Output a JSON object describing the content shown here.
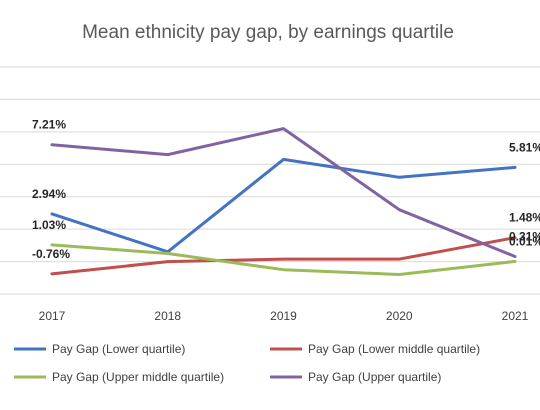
{
  "chart_data": {
    "type": "line",
    "title": "Mean ethnicity pay gap, by earnings quartile",
    "xlabel": "",
    "ylabel": "",
    "x": [
      "2017",
      "2018",
      "2019",
      "2020",
      "2021"
    ],
    "ylim": [
      -2,
      12
    ],
    "grid": true,
    "legend_position": "bottom",
    "series": [
      {
        "name": "Pay Gap (Lower quartile)",
        "color": "#4472C4",
        "values": [
          2.94,
          0.6,
          6.3,
          5.2,
          5.81
        ]
      },
      {
        "name": "Pay Gap (Lower middle quartile)",
        "color": "#C0504D",
        "values": [
          -0.76,
          0.0,
          0.15,
          0.15,
          1.48
        ]
      },
      {
        "name": "Pay Gap (Upper middle quartile)",
        "color": "#9BBB59",
        "values": [
          1.03,
          0.5,
          -0.5,
          -0.8,
          0.01
        ]
      },
      {
        "name": "Pay Gap (Upper quartile)",
        "color": "#8064A2",
        "values": [
          7.21,
          6.6,
          8.2,
          3.2,
          0.31
        ]
      }
    ],
    "data_labels": [
      {
        "series": 3,
        "point": 0,
        "text": "7.21%",
        "anchor": "start"
      },
      {
        "series": 0,
        "point": 0,
        "text": "2.94%",
        "anchor": "start"
      },
      {
        "series": 2,
        "point": 0,
        "text": "1.03%",
        "anchor": "start"
      },
      {
        "series": 1,
        "point": 0,
        "text": "-0.76%",
        "anchor": "start"
      },
      {
        "series": 0,
        "point": 4,
        "text": "5.81%",
        "anchor": "end"
      },
      {
        "series": 1,
        "point": 4,
        "text": "1.48%",
        "anchor": "end"
      },
      {
        "series": 3,
        "point": 4,
        "text": "0.31%",
        "anchor": "end"
      },
      {
        "series": 2,
        "point": 4,
        "text": "0.01%",
        "anchor": "end"
      }
    ]
  }
}
